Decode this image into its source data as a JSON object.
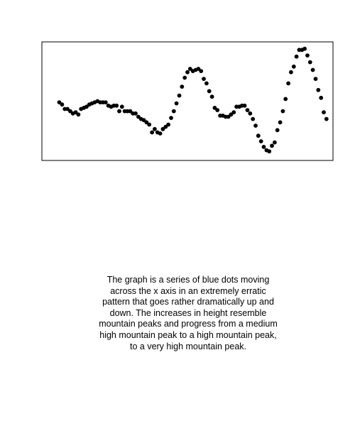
{
  "chart_data": {
    "type": "scatter",
    "title": "",
    "xlabel": "",
    "ylabel": "",
    "axes_visible": false,
    "ticks_visible": false,
    "grid": false,
    "xlim": [
      0,
      100
    ],
    "ylim": [
      0,
      100
    ],
    "marker_color": "#000000",
    "points": [
      [
        3,
        49
      ],
      [
        4,
        47
      ],
      [
        5,
        43
      ],
      [
        6,
        43
      ],
      [
        7,
        41
      ],
      [
        8,
        39
      ],
      [
        9,
        40
      ],
      [
        10,
        38
      ],
      [
        11,
        43
      ],
      [
        12,
        44
      ],
      [
        13,
        45
      ],
      [
        14,
        47
      ],
      [
        15,
        48
      ],
      [
        16,
        49
      ],
      [
        17,
        50
      ],
      [
        18,
        49
      ],
      [
        19,
        49
      ],
      [
        20,
        49
      ],
      [
        21,
        46
      ],
      [
        22,
        45
      ],
      [
        23,
        46
      ],
      [
        24,
        46
      ],
      [
        25,
        41
      ],
      [
        26,
        45
      ],
      [
        27,
        41
      ],
      [
        28,
        41
      ],
      [
        29,
        41
      ],
      [
        30,
        39
      ],
      [
        31,
        39
      ],
      [
        32,
        36
      ],
      [
        33,
        34
      ],
      [
        34,
        33
      ],
      [
        35,
        31
      ],
      [
        36,
        29
      ],
      [
        37,
        22
      ],
      [
        38,
        25
      ],
      [
        39,
        22
      ],
      [
        40,
        21
      ],
      [
        41,
        25
      ],
      [
        42,
        27
      ],
      [
        43,
        29
      ],
      [
        44,
        35
      ],
      [
        45,
        41
      ],
      [
        46,
        48
      ],
      [
        47,
        55
      ],
      [
        48,
        63
      ],
      [
        49,
        71
      ],
      [
        50,
        76
      ],
      [
        51,
        79
      ],
      [
        52,
        77
      ],
      [
        53,
        78
      ],
      [
        54,
        79
      ],
      [
        55,
        77
      ],
      [
        56,
        70
      ],
      [
        57,
        66
      ],
      [
        58,
        59
      ],
      [
        59,
        54
      ],
      [
        60,
        44
      ],
      [
        61,
        42
      ],
      [
        62,
        37
      ],
      [
        63,
        37
      ],
      [
        64,
        36
      ],
      [
        65,
        36
      ],
      [
        66,
        38
      ],
      [
        67,
        40
      ],
      [
        68,
        45
      ],
      [
        69,
        45
      ],
      [
        70,
        46
      ],
      [
        71,
        46
      ],
      [
        72,
        42
      ],
      [
        73,
        39
      ],
      [
        74,
        34
      ],
      [
        75,
        28
      ],
      [
        76,
        19
      ],
      [
        77,
        14
      ],
      [
        78,
        9
      ],
      [
        79,
        6
      ],
      [
        80,
        5
      ],
      [
        81,
        10
      ],
      [
        82,
        13
      ],
      [
        83,
        24
      ],
      [
        84,
        31
      ],
      [
        85,
        41
      ],
      [
        86,
        52
      ],
      [
        87,
        66
      ],
      [
        88,
        76
      ],
      [
        89,
        81
      ],
      [
        90,
        90
      ],
      [
        91,
        96
      ],
      [
        92,
        96
      ],
      [
        93,
        97
      ],
      [
        94,
        91
      ],
      [
        95,
        85
      ],
      [
        96,
        78
      ],
      [
        97,
        70
      ],
      [
        98,
        60
      ],
      [
        99,
        53
      ],
      [
        100,
        40
      ],
      [
        101,
        34
      ]
    ]
  },
  "caption": {
    "lines": [
      "The graph is a series of blue dots moving",
      "across the x axis in an extremely erratic",
      "pattern that goes rather dramatically up and",
      "down. The increases in height resemble",
      "mountain peaks and progress from a medium",
      "high mountain peak to a high mountain peak,",
      "to a very high mountain peak."
    ]
  }
}
